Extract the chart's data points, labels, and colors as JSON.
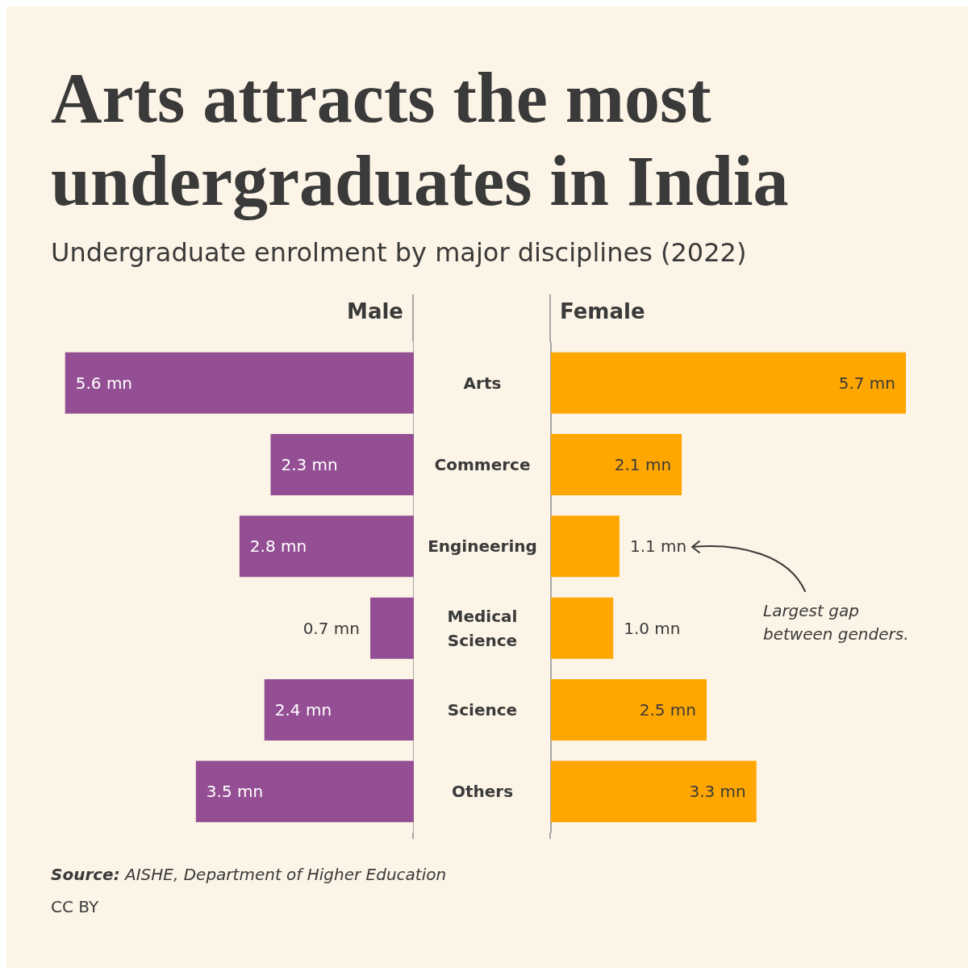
{
  "chart_data": [
    {
      "type": "bar",
      "orientation": "horizontal",
      "title": "Arts attracts the most\nundergraduates in India",
      "subtitle": "Undergraduate enrolment by major disciplines (2022)",
      "categories": [
        "Arts",
        "Commerce",
        "Engineering",
        "Medical\nScience",
        "Science",
        "Others"
      ],
      "tick_labels": false,
      "legend": false,
      "annotations": [
        "Source: AISHE, Department of Higher Education",
        "CC BY"
      ],
      "series": [
        {
          "name": "Male",
          "color": "#944f94",
          "values": [
            5.6,
            2.3,
            2.8,
            0.7,
            2.4,
            3.5
          ],
          "value_labels": [
            "5.6 mn",
            "2.3 mn",
            "2.8 mn",
            "0.7 mn",
            "2.4 mn",
            "3.5 mn"
          ]
        }
      ]
    },
    {
      "type": "bar",
      "orientation": "horizontal",
      "categories": [
        "Arts",
        "Commerce",
        "Engineering",
        "Medical\nScience",
        "Science",
        "Others"
      ],
      "tick_labels": "y",
      "legend": false,
      "series": [
        {
          "name": "Female",
          "color": "#ffa600",
          "values": [
            5.7,
            2.1,
            1.1,
            1.0,
            2.5,
            3.3
          ],
          "value_labels": [
            "5.7 mn",
            "2.1 mn",
            "1.1 mn",
            "1.0 mn",
            "2.5 mn",
            "3.3 mn"
          ]
        }
      ],
      "annotations": [
        "Largest gap between genders."
      ]
    }
  ]
}
